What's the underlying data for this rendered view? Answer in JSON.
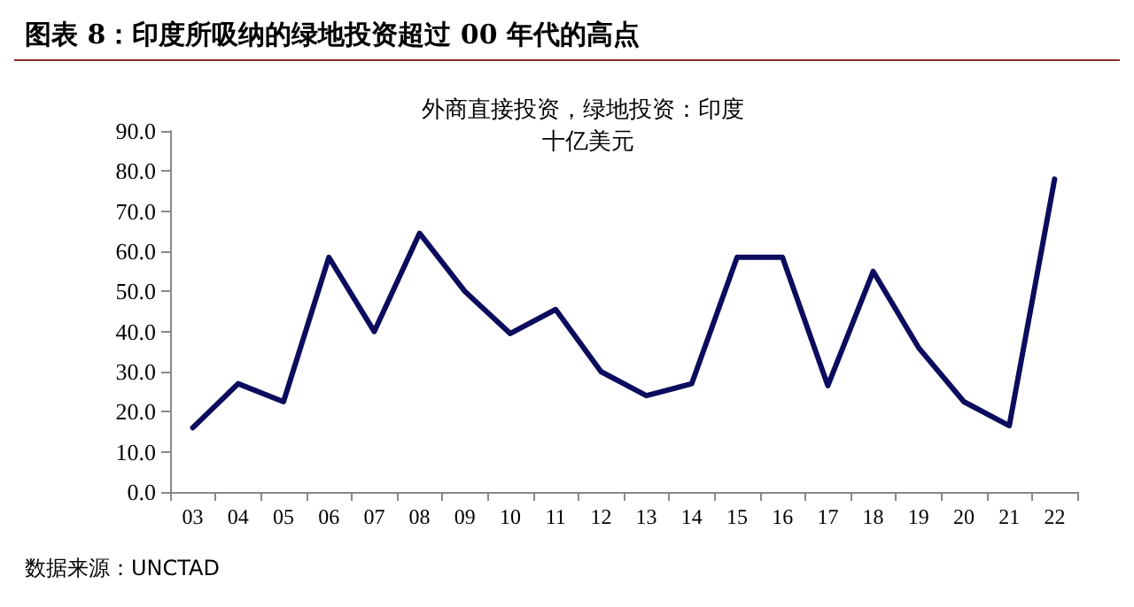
{
  "chart_data": {
    "type": "line",
    "title": "图表 8：印度所吸纳的绿地投资超过 00 年代的高点",
    "subtitle": "外商直接投资，绿地投资：印度",
    "ylabel": "十亿美元",
    "annotations": [
      "数据来源：UNCTAD"
    ],
    "categories": [
      "03",
      "04",
      "05",
      "06",
      "07",
      "08",
      "09",
      "10",
      "11",
      "12",
      "13",
      "14",
      "15",
      "16",
      "17",
      "18",
      "19",
      "20",
      "21",
      "22"
    ],
    "series": [
      {
        "color": "#0c0c5e",
        "values": [
          16,
          27,
          22.5,
          58.5,
          40,
          64.5,
          50,
          39.5,
          45.5,
          30,
          24,
          27,
          58.5,
          58.5,
          26.5,
          55,
          36,
          22.5,
          16.5,
          78
        ]
      }
    ],
    "ylim": [
      0,
      90
    ],
    "yticks": [
      {
        "value": 0,
        "label": "0.0"
      },
      {
        "value": 10,
        "label": "10.0"
      },
      {
        "value": 20,
        "label": "20.0"
      },
      {
        "value": 30,
        "label": "30.0"
      },
      {
        "value": 40,
        "label": "40.0"
      },
      {
        "value": 50,
        "label": "50.0"
      },
      {
        "value": 60,
        "label": "60.0"
      },
      {
        "value": 70,
        "label": "70.0"
      },
      {
        "value": 80,
        "label": "80.0"
      },
      {
        "value": 90,
        "label": "90.0"
      }
    ],
    "grid": false,
    "marker": "none",
    "line_style": "solid"
  }
}
